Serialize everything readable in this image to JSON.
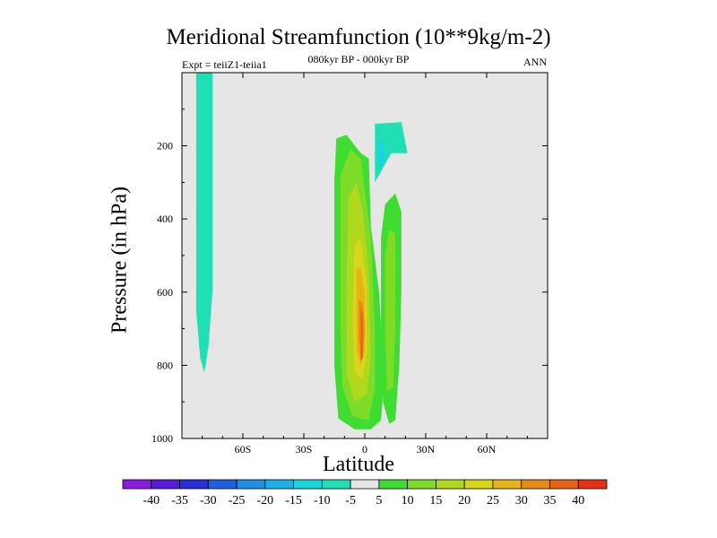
{
  "chart_data": {
    "type": "contour",
    "title": "Meridional Streamfunction (10**9kg/m-2)",
    "subtitle": "080kyr BP - 000kyr BP",
    "experiment": "Expt = teiiZ1-teiia1",
    "season": "ANN",
    "xlabel": "Latitude",
    "ylabel": "Pressure (in hPa)",
    "xlim": [
      -90,
      90
    ],
    "ylim": [
      1000,
      0
    ],
    "x_ticks": [
      {
        "value": -60,
        "label": "60S"
      },
      {
        "value": -30,
        "label": "30S"
      },
      {
        "value": 0,
        "label": "0"
      },
      {
        "value": 30,
        "label": "30N"
      },
      {
        "value": 60,
        "label": "60N"
      }
    ],
    "y_ticks": [
      {
        "value": 200,
        "label": "200"
      },
      {
        "value": 400,
        "label": "400"
      },
      {
        "value": 600,
        "label": "600"
      },
      {
        "value": 800,
        "label": "800"
      },
      {
        "value": 1000,
        "label": "1000"
      }
    ],
    "contour_levels": [
      -40,
      -35,
      -30,
      -25,
      -20,
      -15,
      -10,
      -5,
      5,
      10,
      15,
      20,
      25,
      30,
      35,
      40
    ],
    "colorbar_colors": [
      "#8c1be0",
      "#5a1ad9",
      "#2a2ddb",
      "#1f5fe0",
      "#1f8fe6",
      "#1bb2e8",
      "#18d6dc",
      "#1ee0b4",
      "#e6e6e6",
      "#3fdc32",
      "#7ddc28",
      "#b0d81e",
      "#d8d61a",
      "#e6b414",
      "#e68c14",
      "#e66414",
      "#e63214"
    ],
    "regions": [
      {
        "level": "-10 to -5",
        "color": "#1ee0b4",
        "points": [
          [
            -83,
            0
          ],
          [
            -75,
            0
          ],
          [
            -75,
            600
          ],
          [
            -77,
            750
          ],
          [
            -79,
            820
          ],
          [
            -81,
            780
          ],
          [
            -83,
            650
          ]
        ]
      },
      {
        "level": "-10 to -5",
        "color": "#1ee0b4",
        "points": [
          [
            5,
            140
          ],
          [
            18,
            135
          ],
          [
            21,
            220
          ],
          [
            13,
            220
          ],
          [
            5,
            300
          ]
        ]
      },
      {
        "level": "-15 to -10",
        "color": "#18d6dc",
        "points": [
          [
            6,
            190
          ],
          [
            9,
            185
          ],
          [
            10,
            240
          ],
          [
            7,
            265
          ]
        ]
      },
      {
        "level": "5 to 10",
        "color": "#3fdc32",
        "points": [
          [
            -14,
            180
          ],
          [
            -9,
            170
          ],
          [
            -2,
            220
          ],
          [
            2,
            235
          ],
          [
            3,
            420
          ],
          [
            7,
            600
          ],
          [
            9,
            780
          ],
          [
            9,
            880
          ],
          [
            8,
            950
          ],
          [
            3,
            975
          ],
          [
            -5,
            975
          ],
          [
            -13,
            945
          ],
          [
            -15,
            800
          ],
          [
            -15,
            500
          ],
          [
            -15,
            300
          ]
        ]
      },
      {
        "level": "5 to 10",
        "color": "#3fdc32",
        "points": [
          [
            10,
            360
          ],
          [
            15,
            330
          ],
          [
            18,
            380
          ],
          [
            18,
            600
          ],
          [
            17,
            800
          ],
          [
            15,
            950
          ],
          [
            12,
            960
          ],
          [
            9,
            900
          ],
          [
            8,
            700
          ],
          [
            8,
            450
          ]
        ]
      },
      {
        "level": "10 to 15",
        "color": "#7ddc28",
        "points": [
          [
            -12,
            280
          ],
          [
            -7,
            210
          ],
          [
            -2,
            235
          ],
          [
            3,
            450
          ],
          [
            5,
            700
          ],
          [
            5,
            860
          ],
          [
            2,
            950
          ],
          [
            -6,
            940
          ],
          [
            -11,
            860
          ],
          [
            -12,
            700
          ],
          [
            -12,
            450
          ]
        ]
      },
      {
        "level": "10 to 15",
        "color": "#7ddc28",
        "points": [
          [
            12,
            430
          ],
          [
            15,
            440
          ],
          [
            15,
            700
          ],
          [
            14,
            860
          ],
          [
            11,
            870
          ],
          [
            10,
            700
          ],
          [
            10,
            500
          ]
        ]
      },
      {
        "level": "15 to 20",
        "color": "#b0d81e",
        "points": [
          [
            -8,
            340
          ],
          [
            -4,
            300
          ],
          [
            -1,
            380
          ],
          [
            2,
            550
          ],
          [
            3,
            780
          ],
          [
            1,
            880
          ],
          [
            -5,
            900
          ],
          [
            -9,
            820
          ],
          [
            -9,
            600
          ]
        ]
      },
      {
        "level": "20 to 25",
        "color": "#d8d61a",
        "points": [
          [
            -5,
            470
          ],
          [
            -2,
            450
          ],
          [
            1,
            580
          ],
          [
            1,
            760
          ],
          [
            -1,
            840
          ],
          [
            -5,
            820
          ],
          [
            -6,
            680
          ]
        ]
      },
      {
        "level": "25 to 30",
        "color": "#e6b414",
        "points": [
          [
            -4,
            540
          ],
          [
            -2,
            530
          ],
          [
            0,
            600
          ],
          [
            0,
            760
          ],
          [
            -2,
            800
          ],
          [
            -4,
            760
          ],
          [
            -4,
            640
          ]
        ]
      },
      {
        "level": "30 to 35",
        "color": "#e68c14",
        "points": [
          [
            -3,
            620
          ],
          [
            -1,
            630
          ],
          [
            0,
            700
          ],
          [
            -1,
            780
          ],
          [
            -2,
            790
          ],
          [
            -3,
            720
          ]
        ]
      },
      {
        "level": "35 to 40",
        "color": "#e66414",
        "points": [
          [
            -2,
            650
          ],
          [
            -1,
            660
          ],
          [
            -1,
            780
          ],
          [
            -2,
            790
          ]
        ]
      }
    ]
  }
}
